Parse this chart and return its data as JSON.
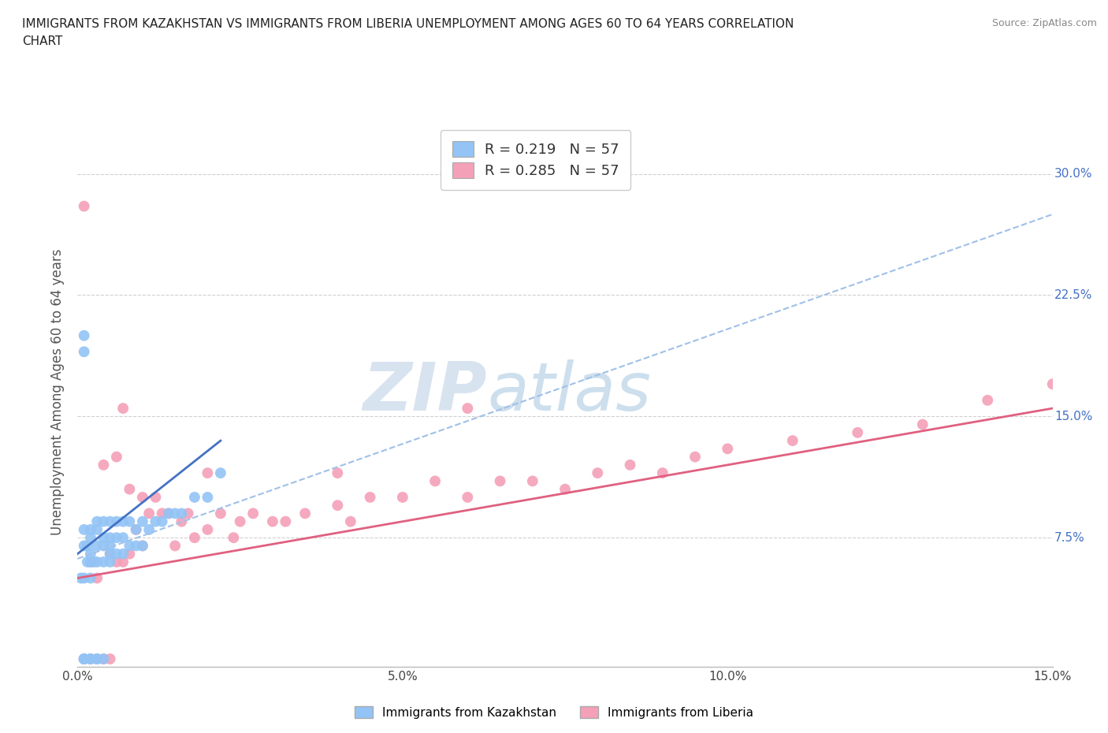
{
  "title_line1": "IMMIGRANTS FROM KAZAKHSTAN VS IMMIGRANTS FROM LIBERIA UNEMPLOYMENT AMONG AGES 60 TO 64 YEARS CORRELATION",
  "title_line2": "CHART",
  "source": "Source: ZipAtlas.com",
  "ylabel": "Unemployment Among Ages 60 to 64 years",
  "xlim": [
    0.0,
    0.15
  ],
  "ylim": [
    -0.005,
    0.335
  ],
  "xticks": [
    0.0,
    0.025,
    0.05,
    0.075,
    0.1,
    0.125,
    0.15
  ],
  "xticklabels": [
    "0.0%",
    "",
    "5.0%",
    "",
    "10.0%",
    "",
    "15.0%"
  ],
  "yticks": [
    0.0,
    0.075,
    0.15,
    0.225,
    0.3
  ],
  "yticklabels": [
    "",
    "7.5%",
    "15.0%",
    "22.5%",
    "30.0%"
  ],
  "watermark_zip": "ZIP",
  "watermark_atlas": "atlas",
  "legend_r1": "R = 0.219   N = 57",
  "legend_r2": "R = 0.285   N = 57",
  "kazakhstan_color": "#93c4f5",
  "liberia_color": "#f4a0b8",
  "kazakhstan_line_color": "#4472c4",
  "liberia_line_color": "#e06080",
  "kaz_dash_line": [
    [
      0.0,
      0.062
    ],
    [
      0.15,
      0.275
    ]
  ],
  "kaz_solid_line": [
    [
      0.0,
      0.065
    ],
    [
      0.022,
      0.135
    ]
  ],
  "lib_line": [
    [
      0.0,
      0.05
    ],
    [
      0.15,
      0.155
    ]
  ],
  "kazakhstan_x": [
    0.0005,
    0.001,
    0.001,
    0.001,
    0.001,
    0.001,
    0.001,
    0.001,
    0.001,
    0.0015,
    0.0015,
    0.002,
    0.002,
    0.002,
    0.002,
    0.002,
    0.002,
    0.002,
    0.002,
    0.0025,
    0.003,
    0.003,
    0.003,
    0.003,
    0.003,
    0.003,
    0.004,
    0.004,
    0.004,
    0.004,
    0.004,
    0.005,
    0.005,
    0.005,
    0.005,
    0.005,
    0.006,
    0.006,
    0.006,
    0.007,
    0.007,
    0.007,
    0.008,
    0.008,
    0.009,
    0.009,
    0.01,
    0.01,
    0.011,
    0.012,
    0.013,
    0.014,
    0.015,
    0.016,
    0.018,
    0.02,
    0.022
  ],
  "kazakhstan_y": [
    0.05,
    0.0,
    0.0,
    0.0,
    0.05,
    0.07,
    0.08,
    0.19,
    0.2,
    0.06,
    0.07,
    0.0,
    0.0,
    0.0,
    0.05,
    0.06,
    0.065,
    0.075,
    0.08,
    0.06,
    0.0,
    0.0,
    0.06,
    0.07,
    0.08,
    0.085,
    0.0,
    0.06,
    0.07,
    0.075,
    0.085,
    0.06,
    0.065,
    0.07,
    0.075,
    0.085,
    0.065,
    0.075,
    0.085,
    0.065,
    0.075,
    0.085,
    0.07,
    0.085,
    0.07,
    0.08,
    0.07,
    0.085,
    0.08,
    0.085,
    0.085,
    0.09,
    0.09,
    0.09,
    0.1,
    0.1,
    0.115
  ],
  "liberia_x": [
    0.001,
    0.001,
    0.002,
    0.002,
    0.003,
    0.003,
    0.004,
    0.004,
    0.005,
    0.005,
    0.006,
    0.006,
    0.007,
    0.007,
    0.008,
    0.008,
    0.009,
    0.01,
    0.01,
    0.011,
    0.012,
    0.013,
    0.014,
    0.015,
    0.016,
    0.017,
    0.018,
    0.02,
    0.022,
    0.024,
    0.025,
    0.027,
    0.03,
    0.032,
    0.035,
    0.04,
    0.042,
    0.045,
    0.05,
    0.055,
    0.06,
    0.065,
    0.07,
    0.075,
    0.08,
    0.085,
    0.09,
    0.095,
    0.1,
    0.11,
    0.12,
    0.13,
    0.14,
    0.15,
    0.02,
    0.04,
    0.06
  ],
  "liberia_y": [
    0.0,
    0.28,
    0.0,
    0.06,
    0.0,
    0.05,
    0.0,
    0.12,
    0.0,
    0.065,
    0.06,
    0.125,
    0.06,
    0.155,
    0.065,
    0.105,
    0.08,
    0.07,
    0.1,
    0.09,
    0.1,
    0.09,
    0.09,
    0.07,
    0.085,
    0.09,
    0.075,
    0.08,
    0.09,
    0.075,
    0.085,
    0.09,
    0.085,
    0.085,
    0.09,
    0.095,
    0.085,
    0.1,
    0.1,
    0.11,
    0.1,
    0.11,
    0.11,
    0.105,
    0.115,
    0.12,
    0.115,
    0.125,
    0.13,
    0.135,
    0.14,
    0.145,
    0.16,
    0.17,
    0.115,
    0.115,
    0.155
  ]
}
